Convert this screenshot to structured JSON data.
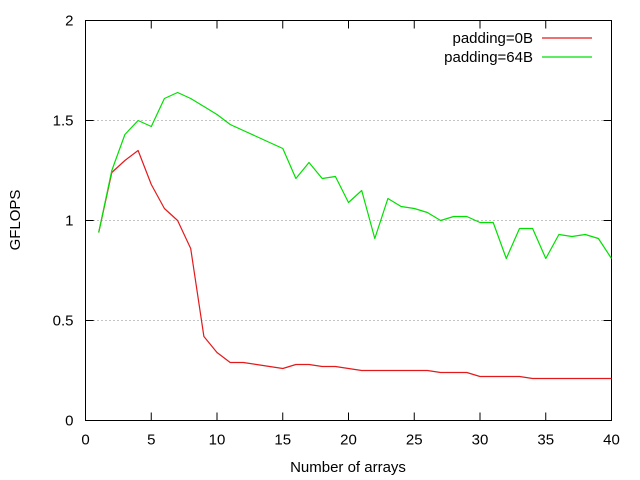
{
  "chart_data": {
    "type": "line",
    "title": "",
    "xlabel": "Number of arrays",
    "ylabel": "GFLOPS",
    "xlim": [
      0,
      40
    ],
    "ylim": [
      0,
      2
    ],
    "xticks": [
      0,
      5,
      10,
      15,
      20,
      25,
      30,
      35,
      40
    ],
    "xtick_labels": [
      "0",
      "5",
      "10",
      "15",
      "20",
      "25",
      "30",
      "35",
      "40"
    ],
    "yticks": [
      0,
      0.5,
      1,
      1.5,
      2
    ],
    "ytick_labels": [
      "0",
      "0.5",
      "1",
      "1.5",
      "2"
    ],
    "grid": "horizontal dotted",
    "legend_position": "top-right",
    "x": [
      1,
      2,
      3,
      4,
      5,
      6,
      7,
      8,
      9,
      10,
      11,
      12,
      13,
      14,
      15,
      16,
      17,
      18,
      19,
      20,
      21,
      22,
      23,
      24,
      25,
      26,
      27,
      28,
      29,
      30,
      31,
      32,
      33,
      34,
      35,
      36,
      37,
      38,
      39,
      40
    ],
    "series": [
      {
        "name": "padding=0B",
        "color": "#e31a1c",
        "values": [
          0.94,
          1.24,
          1.3,
          1.35,
          1.18,
          1.06,
          1.0,
          0.86,
          0.42,
          0.34,
          0.29,
          0.29,
          0.28,
          0.27,
          0.26,
          0.28,
          0.28,
          0.27,
          0.27,
          0.26,
          0.25,
          0.25,
          0.25,
          0.25,
          0.25,
          0.25,
          0.24,
          0.24,
          0.24,
          0.22,
          0.22,
          0.22,
          0.22,
          0.21,
          0.21,
          0.21,
          0.21,
          0.21,
          0.21,
          0.21
        ]
      },
      {
        "name": "padding=64B",
        "color": "#00e000",
        "values": [
          0.94,
          1.25,
          1.43,
          1.5,
          1.47,
          1.61,
          1.64,
          1.61,
          1.57,
          1.53,
          1.48,
          1.45,
          1.42,
          1.39,
          1.36,
          1.21,
          1.29,
          1.21,
          1.22,
          1.09,
          1.15,
          0.91,
          1.11,
          1.07,
          1.06,
          1.04,
          1.0,
          1.02,
          1.02,
          0.99,
          0.99,
          0.81,
          0.96,
          0.96,
          0.81,
          0.93,
          0.92,
          0.93,
          0.91,
          0.81
        ]
      }
    ]
  }
}
